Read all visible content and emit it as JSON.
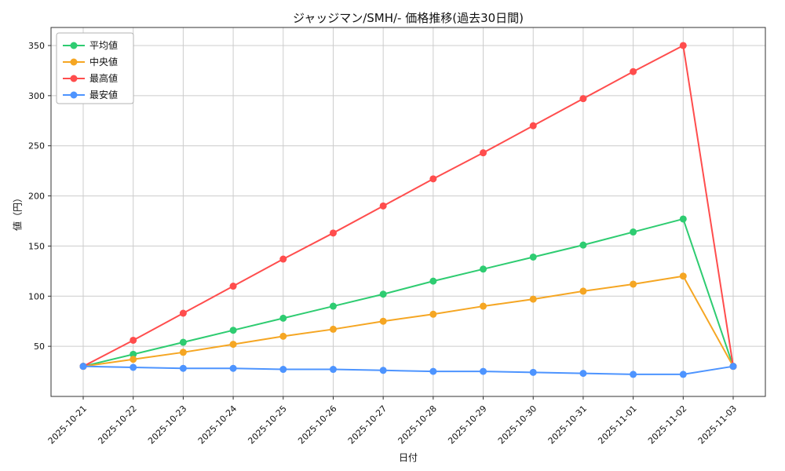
{
  "chart_data": {
    "type": "line",
    "title": "ジャッジマン/SMH/- 価格推移(過去30日間)",
    "xlabel": "日付",
    "ylabel": "値（円）",
    "grid": true,
    "legend_position": "upper left",
    "ylim": [
      0,
      368
    ],
    "yticks": [
      50,
      100,
      150,
      200,
      250,
      300,
      350
    ],
    "categories": [
      "2025-10-21",
      "2025-10-22",
      "2025-10-23",
      "2025-10-24",
      "2025-10-25",
      "2025-10-26",
      "2025-10-27",
      "2025-10-28",
      "2025-10-29",
      "2025-10-30",
      "2025-10-31",
      "2025-11-01",
      "2025-11-02",
      "2025-11-03"
    ],
    "series": [
      {
        "name": "平均値",
        "color": "#2ecc71",
        "values": [
          30,
          42,
          54,
          66,
          78,
          90,
          102,
          115,
          127,
          139,
          151,
          164,
          177,
          30
        ]
      },
      {
        "name": "中央値",
        "color": "#f5a623",
        "values": [
          30,
          37,
          44,
          52,
          60,
          67,
          75,
          82,
          90,
          97,
          105,
          112,
          120,
          30
        ]
      },
      {
        "name": "最高値",
        "color": "#ff4d4d",
        "values": [
          30,
          56,
          83,
          110,
          137,
          163,
          190,
          217,
          243,
          270,
          297,
          324,
          350,
          30
        ]
      },
      {
        "name": "最安値",
        "color": "#4d94ff",
        "values": [
          30,
          29,
          28,
          28,
          27,
          27,
          26,
          25,
          25,
          24,
          23,
          22,
          22,
          30
        ]
      }
    ]
  }
}
